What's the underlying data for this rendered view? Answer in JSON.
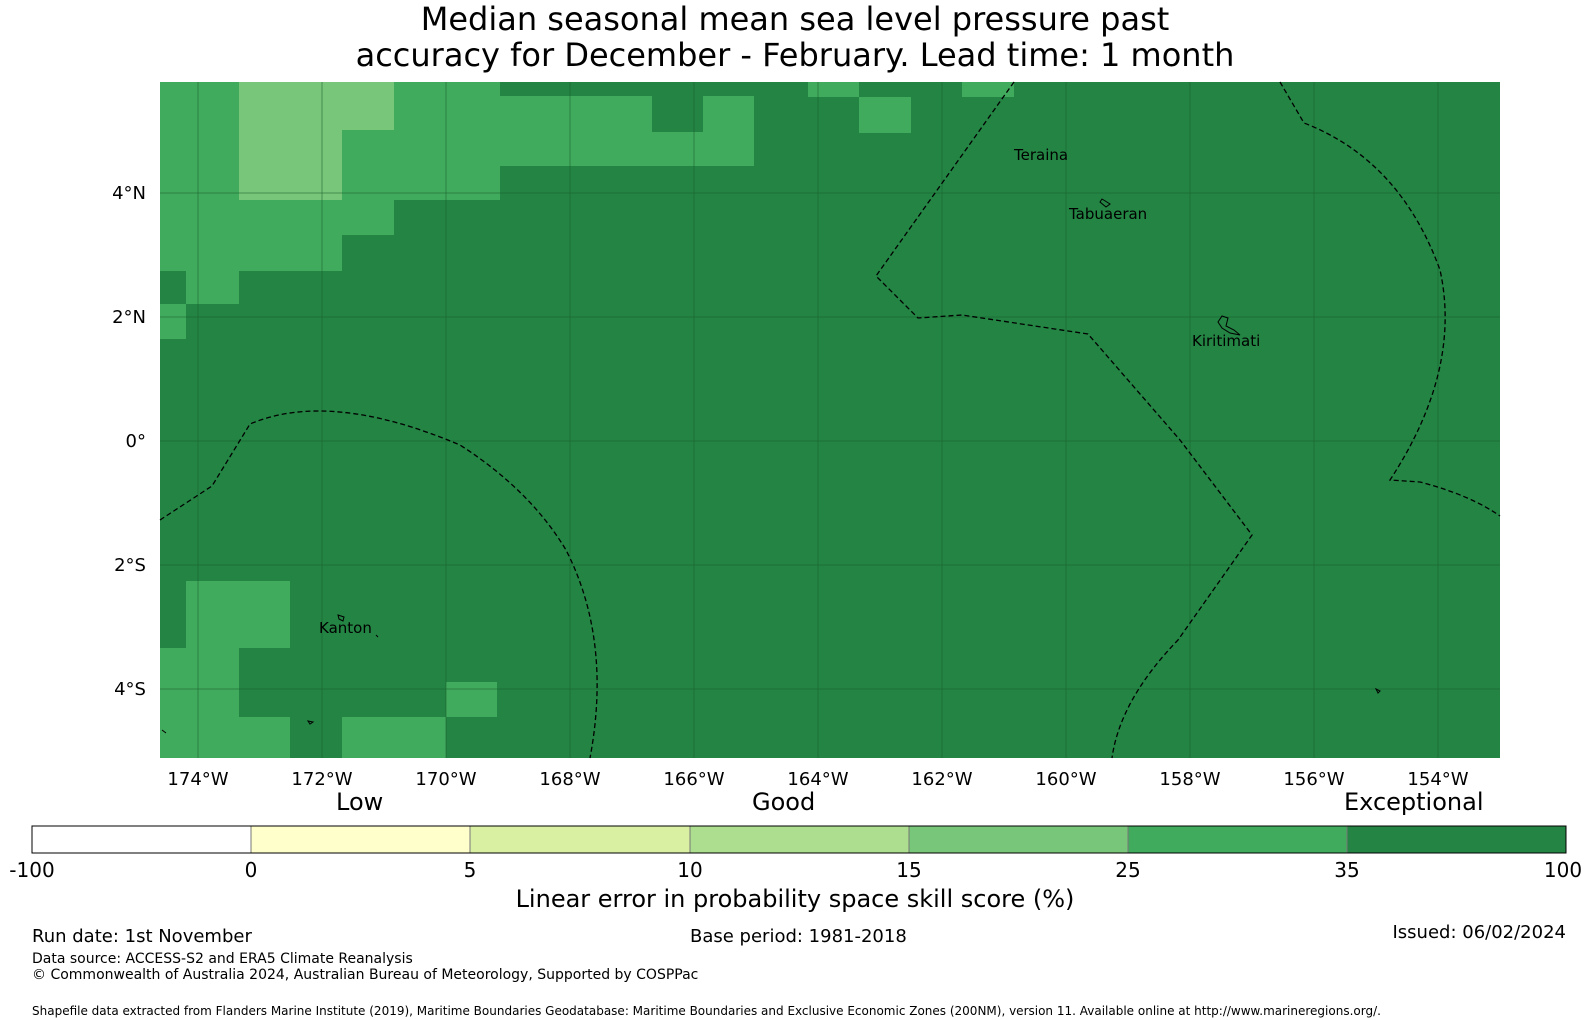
{
  "title": {
    "line1": "Median seasonal mean sea level pressure past",
    "line2": "accuracy for December - February. Lead time: 1 month"
  },
  "map": {
    "lon_ticks": [
      "174°W",
      "172°W",
      "170°W",
      "168°W",
      "166°W",
      "164°W",
      "162°W",
      "160°W",
      "158°W",
      "156°W",
      "154°W"
    ],
    "lat_ticks": [
      "4°N",
      "2°N",
      "0°",
      "2°S",
      "4°S"
    ],
    "places": [
      "Teraina",
      "Tabuaeran",
      "Kiritimati",
      "Kanton"
    ],
    "colors": {
      "exceptional": "#238443",
      "good_high": "#41ab5d",
      "good_mid": "#78c679",
      "good_low": "#addd8e",
      "low_high": "#d9f0a3",
      "low_low": "#ffffcc",
      "none": "#ffffff"
    }
  },
  "colorbar": {
    "categories": [
      "Low",
      "Good",
      "Exceptional"
    ],
    "ticks": [
      "-100",
      "0",
      "5",
      "10",
      "15",
      "25",
      "35",
      "100"
    ],
    "colors": [
      "#ffffff",
      "#ffffcc",
      "#d9f0a3",
      "#addd8e",
      "#78c679",
      "#41ab5d",
      "#238443"
    ],
    "label": "Linear error in probability space skill score (%)"
  },
  "footer": {
    "run_date": "Run date: 1st November",
    "base_period": "Base period: 1981-2018",
    "issued": "Issued: 06/02/2024",
    "data_source": "Data source: ACCESS-S2 and ERA5 Climate Reanalysis",
    "copyright": "© Commonwealth of Australia 2024, Australian Bureau of Meteorology, Supported by COSPPac",
    "shapefile": "Shapefile data extracted from Flanders Marine Institute (2019), Maritime Boundaries Geodatabase: Maritime Boundaries and Exclusive Economic Zones (200NM), version 11. Available online at http://www.marineregions.org/."
  }
}
